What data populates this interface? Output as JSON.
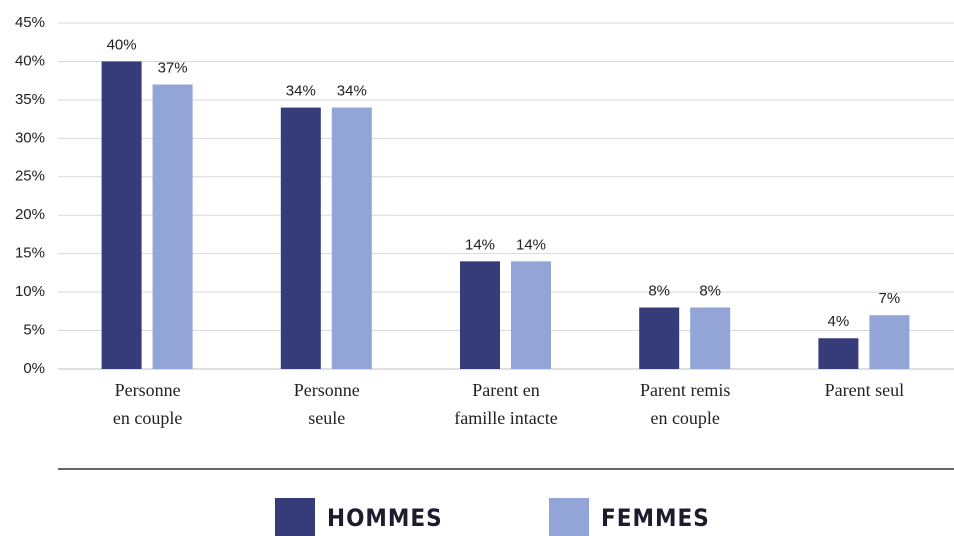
{
  "chart_data": {
    "type": "bar",
    "categories": [
      [
        "Personne",
        "en couple"
      ],
      [
        "Personne",
        "seule"
      ],
      [
        "Parent en",
        "famille intacte"
      ],
      [
        "Parent remis",
        "en couple"
      ],
      [
        "Parent seul"
      ]
    ],
    "series": [
      {
        "name": "HOMMES",
        "color": "#363c7a",
        "values": [
          40,
          34,
          14,
          8,
          4
        ],
        "value_labels": [
          "40%",
          "34%",
          "14%",
          "8%",
          "4%"
        ]
      },
      {
        "name": "FEMMES",
        "color": "#92a5d6",
        "values": [
          37,
          34,
          14,
          8,
          7
        ],
        "value_labels": [
          "37%",
          "34%",
          "14%",
          "8%",
          "7%"
        ]
      }
    ],
    "ylim": [
      0,
      45
    ],
    "yticks": [
      {
        "value": 0,
        "label": "0%"
      },
      {
        "value": 5,
        "label": "5%"
      },
      {
        "value": 10,
        "label": "10%"
      },
      {
        "value": 15,
        "label": "15%"
      },
      {
        "value": 20,
        "label": "20%"
      },
      {
        "value": 25,
        "label": "25%"
      },
      {
        "value": 30,
        "label": "30%"
      },
      {
        "value": 35,
        "label": "35%"
      },
      {
        "value": 40,
        "label": "40%"
      },
      {
        "value": 45,
        "label": "45%"
      }
    ],
    "grid": true,
    "legend": "bottom"
  }
}
